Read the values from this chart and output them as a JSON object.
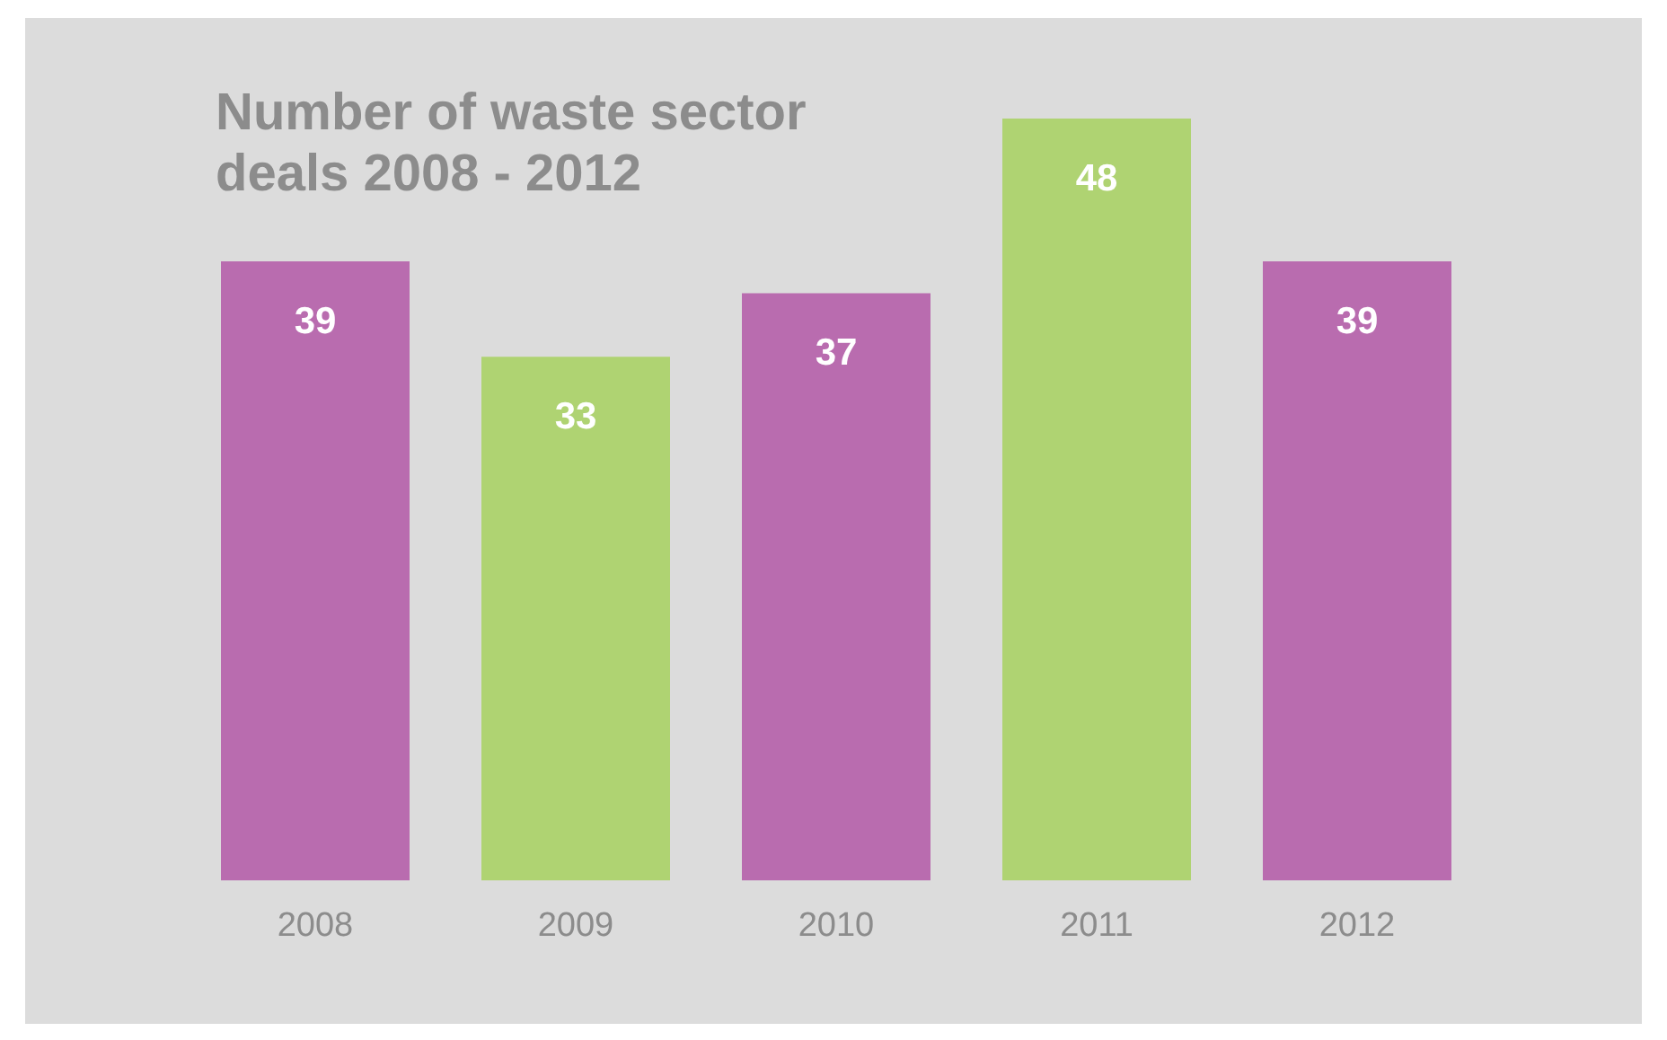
{
  "chart_data": {
    "type": "bar",
    "title": "Number of waste sector deals 2008 - 2012",
    "categories": [
      "2008",
      "2009",
      "2010",
      "2011",
      "2012"
    ],
    "values": [
      39,
      33,
      37,
      48,
      39
    ],
    "colors": [
      "#b96caf",
      "#afd372",
      "#b96caf",
      "#afd372",
      "#b96caf"
    ],
    "data_labels": true,
    "grid": false,
    "legend": false
  }
}
